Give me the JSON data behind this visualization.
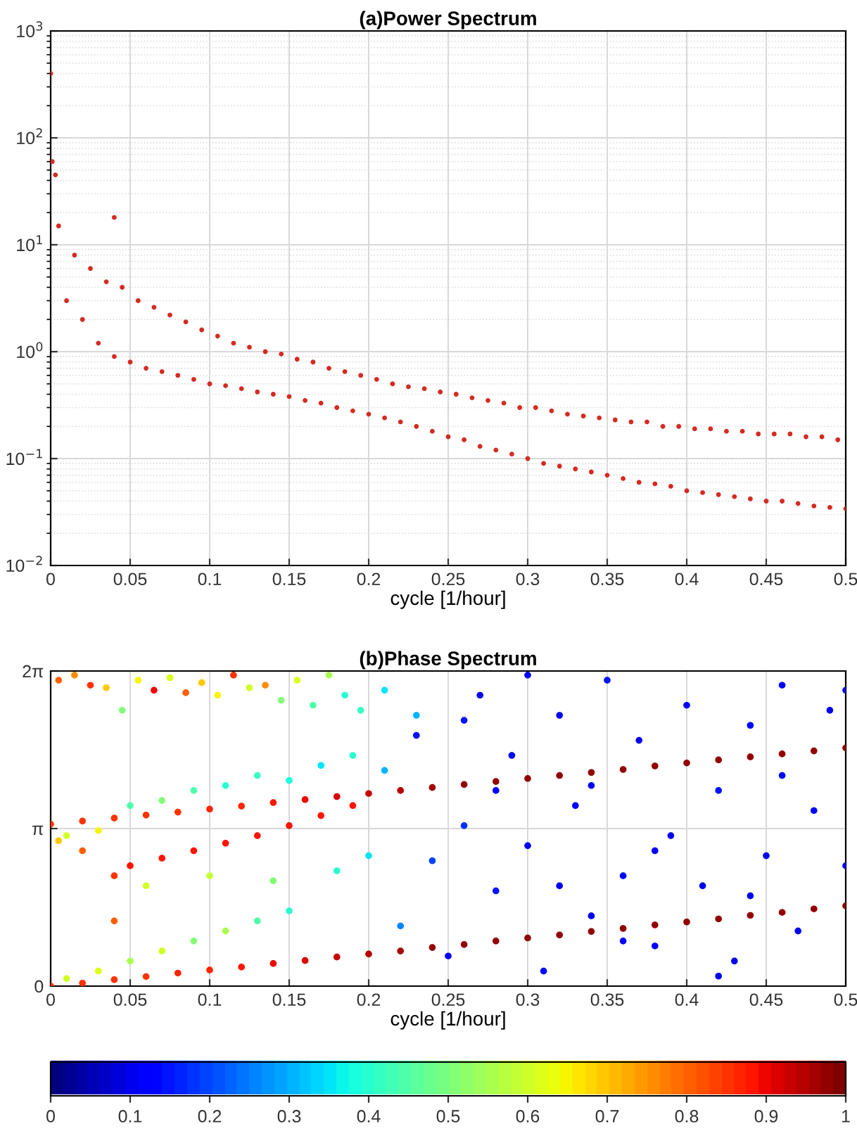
{
  "chart_data": [
    {
      "type": "scatter",
      "title": "(a)Power Spectrum",
      "xlabel": "cycle [1/hour]",
      "log": "y",
      "grid": true,
      "marker": "circle",
      "xlim": [
        0,
        0.5
      ],
      "xticks": [
        0,
        0.05,
        0.1,
        0.15,
        0.2,
        0.25,
        0.3,
        0.35,
        0.4,
        0.45,
        0.5
      ],
      "ylim": [
        0.01,
        1000
      ],
      "yticks": [
        {
          "value": 0.01,
          "label": "10$^{−2}$"
        },
        {
          "value": 0.1,
          "label": "10$^{−1}$"
        },
        {
          "value": 1,
          "label": "10$^{0}$"
        },
        {
          "value": 10,
          "label": "10$^{1}$"
        },
        {
          "value": 100,
          "label": "10$^{2}$"
        },
        {
          "value": 1000,
          "label": "10$^{3}$"
        }
      ],
      "series": [
        {
          "color": "#d62a20",
          "x": [
            0,
            0.001,
            0.003,
            0.04,
            0.005,
            0.015,
            0.025,
            0.035,
            0.045,
            0.055,
            0.065,
            0.075,
            0.085,
            0.095,
            0.105,
            0.115,
            0.125,
            0.135,
            0.145,
            0.155,
            0.165,
            0.175,
            0.185,
            0.195,
            0.205,
            0.215,
            0.225,
            0.235,
            0.245,
            0.255,
            0.265,
            0.275,
            0.285,
            0.295,
            0.305,
            0.315,
            0.325,
            0.335,
            0.345,
            0.355,
            0.365,
            0.375,
            0.385,
            0.395,
            0.405,
            0.415,
            0.425,
            0.435,
            0.445,
            0.455,
            0.465,
            0.475,
            0.485,
            0.495
          ],
          "values": [
            400,
            60,
            45,
            18,
            15,
            8,
            6,
            4.5,
            4,
            3,
            2.6,
            2.2,
            1.9,
            1.6,
            1.4,
            1.2,
            1.1,
            1.0,
            0.95,
            0.85,
            0.8,
            0.7,
            0.65,
            0.6,
            0.55,
            0.5,
            0.47,
            0.45,
            0.42,
            0.4,
            0.37,
            0.35,
            0.33,
            0.3,
            0.3,
            0.28,
            0.26,
            0.25,
            0.24,
            0.23,
            0.22,
            0.22,
            0.2,
            0.2,
            0.19,
            0.19,
            0.18,
            0.18,
            0.17,
            0.17,
            0.17,
            0.16,
            0.16,
            0.15
          ]
        },
        {
          "color": "#d62a20",
          "x": [
            0.01,
            0.02,
            0.03,
            0.04,
            0.05,
            0.06,
            0.07,
            0.08,
            0.09,
            0.1,
            0.11,
            0.12,
            0.13,
            0.14,
            0.15,
            0.16,
            0.17,
            0.18,
            0.19,
            0.2,
            0.21,
            0.22,
            0.23,
            0.24,
            0.25,
            0.26,
            0.27,
            0.28,
            0.29,
            0.3,
            0.31,
            0.32,
            0.33,
            0.34,
            0.35,
            0.36,
            0.37,
            0.38,
            0.39,
            0.4,
            0.41,
            0.42,
            0.43,
            0.44,
            0.45,
            0.46,
            0.47,
            0.48,
            0.49,
            0.5
          ],
          "values": [
            3,
            2,
            1.2,
            0.9,
            0.8,
            0.7,
            0.65,
            0.6,
            0.55,
            0.5,
            0.48,
            0.45,
            0.42,
            0.4,
            0.38,
            0.35,
            0.33,
            0.3,
            0.28,
            0.26,
            0.24,
            0.22,
            0.2,
            0.18,
            0.16,
            0.15,
            0.13,
            0.12,
            0.11,
            0.1,
            0.09,
            0.085,
            0.08,
            0.075,
            0.07,
            0.065,
            0.06,
            0.058,
            0.055,
            0.05,
            0.048,
            0.046,
            0.044,
            0.042,
            0.04,
            0.04,
            0.038,
            0.036,
            0.035,
            0.034
          ]
        }
      ]
    },
    {
      "type": "scatter",
      "title": "(b)Phase Spectrum",
      "xlabel": "cycle [1/hour]",
      "grid": true,
      "marker": "circle",
      "xlim": [
        0,
        0.5
      ],
      "xticks": [
        0,
        0.05,
        0.1,
        0.15,
        0.2,
        0.25,
        0.3,
        0.35,
        0.4,
        0.45,
        0.5
      ],
      "ylim": [
        0,
        6.2832
      ],
      "yticks": [
        0,
        {
          "value": 3.1416,
          "label": "π"
        },
        {
          "value": 6.2832,
          "label": "2π"
        }
      ],
      "clim": [
        0,
        1
      ],
      "cticks": [
        0,
        0.1,
        0.2,
        0.3,
        0.4,
        0.5,
        0.6,
        0.7,
        0.8,
        0.9,
        1
      ],
      "x": [
        0.22,
        0.23,
        0.24,
        0.25,
        0.26,
        0.27,
        0.28,
        0.29,
        0.3,
        0.31,
        0.32,
        0.33,
        0.34,
        0.35,
        0.36,
        0.37,
        0.38,
        0.39,
        0.4,
        0.41,
        0.42,
        0.43,
        0.44,
        0.45,
        0.46,
        0.47,
        0.48,
        0.49,
        0.5,
        0.26,
        0.3,
        0.34,
        0.38,
        0.42,
        0.46,
        0.5,
        0.44,
        0.36,
        0.28,
        0.32,
        0.005,
        0.015,
        0.025,
        0.035,
        0.045,
        0.055,
        0.065,
        0.075,
        0.085,
        0.095,
        0.105,
        0.115,
        0.125,
        0.135,
        0.145,
        0.155,
        0.165,
        0.175,
        0.185,
        0.195,
        0.21,
        0.23,
        0.05,
        0.07,
        0.09,
        0.11,
        0.13,
        0.15,
        0.17,
        0.19,
        0.21,
        0.01,
        0.03,
        0.05,
        0.07,
        0.09,
        0.11,
        0.13,
        0.15,
        0.06,
        0.1,
        0.14,
        0.18,
        0.2,
        0.005,
        0.01,
        0.02,
        0.03,
        0.04,
        0.04,
        0.05,
        0.07,
        0.09,
        0.11,
        0.13,
        0.15,
        0.17,
        0.19,
        0,
        0.02,
        0.04,
        0.06,
        0.08,
        0.1,
        0.12,
        0.14,
        0.16,
        0.18,
        0.2,
        0.22,
        0.24,
        0.26,
        0.28,
        0.3,
        0.32,
        0.34,
        0.36,
        0.38,
        0.4,
        0.42,
        0.44,
        0.46,
        0.48,
        0.5,
        0,
        0.02,
        0.04,
        0.06,
        0.08,
        0.1,
        0.12,
        0.14,
        0.16,
        0.18,
        0.2,
        0.22,
        0.24,
        0.26,
        0.28,
        0.3,
        0.32,
        0.34,
        0.36,
        0.38,
        0.4,
        0.42,
        0.44,
        0.46,
        0.48,
        0.5
      ],
      "values": [
        1.2,
        5.0,
        2.5,
        0.6,
        3.2,
        5.8,
        1.9,
        4.6,
        2.8,
        0.3,
        5.4,
        3.6,
        1.4,
        6.1,
        2.2,
        4.9,
        0.8,
        3.0,
        5.6,
        2.0,
        3.9,
        0.5,
        5.2,
        2.6,
        6.0,
        1.1,
        3.5,
        5.5,
        2.4,
        5.3,
        6.2,
        4.0,
        2.7,
        0.2,
        4.2,
        5.9,
        1.8,
        0.9,
        3.9,
        2.0,
        6.1,
        6.2,
        6.0,
        5.95,
        5.5,
        6.1,
        5.9,
        6.15,
        5.85,
        6.05,
        5.8,
        6.2,
        5.95,
        6.0,
        5.7,
        6.1,
        5.6,
        6.2,
        5.8,
        5.5,
        5.9,
        5.4,
        3.6,
        3.7,
        3.9,
        4.0,
        4.2,
        4.1,
        4.4,
        4.6,
        4.3,
        0.15,
        0.3,
        0.5,
        0.7,
        0.9,
        1.1,
        1.3,
        1.5,
        2.0,
        2.2,
        2.1,
        2.3,
        2.6,
        2.9,
        3.0,
        2.7,
        3.1,
        2.2,
        1.3,
        2.4,
        2.55,
        2.7,
        2.85,
        3.0,
        3.2,
        3.4,
        3.6,
        3.23,
        3.29,
        3.35,
        3.41,
        3.47,
        3.53,
        3.59,
        3.66,
        3.72,
        3.78,
        3.84,
        3.9,
        3.96,
        4.02,
        4.08,
        4.14,
        4.2,
        4.26,
        4.32,
        4.39,
        4.45,
        4.51,
        4.57,
        4.63,
        4.69,
        4.75,
        0.0,
        0.06,
        0.13,
        0.19,
        0.26,
        0.32,
        0.38,
        0.45,
        0.51,
        0.58,
        0.64,
        0.7,
        0.77,
        0.83,
        0.9,
        0.96,
        1.02,
        1.09,
        1.15,
        1.22,
        1.28,
        1.34,
        1.41,
        1.47,
        1.54,
        1.6
      ],
      "cvalues": [
        0.25,
        0.15,
        0.2,
        0.12,
        0.18,
        0.1,
        0.15,
        0.12,
        0.1,
        0.14,
        0.1,
        0.13,
        0.1,
        0.15,
        0.12,
        0.1,
        0.13,
        0.1,
        0.12,
        0.1,
        0.15,
        0.1,
        0.12,
        0.1,
        0.14,
        0.1,
        0.12,
        0.1,
        0.13,
        0.15,
        0.12,
        0.1,
        0.12,
        0.1,
        0.1,
        0.12,
        0.1,
        0.12,
        0.14,
        0.1,
        0.8,
        0.75,
        0.85,
        0.7,
        0.5,
        0.65,
        0.9,
        0.62,
        0.8,
        0.7,
        0.65,
        0.85,
        0.6,
        0.75,
        0.5,
        0.62,
        0.45,
        0.55,
        0.4,
        0.42,
        0.35,
        0.3,
        0.45,
        0.5,
        0.45,
        0.4,
        0.42,
        0.38,
        0.35,
        0.4,
        0.3,
        0.6,
        0.62,
        0.55,
        0.6,
        0.5,
        0.55,
        0.45,
        0.4,
        0.6,
        0.58,
        0.5,
        0.4,
        0.35,
        0.7,
        0.6,
        0.8,
        0.65,
        0.85,
        0.8,
        0.88,
        0.88,
        0.88,
        0.88,
        0.88,
        0.88,
        0.88,
        0.88,
        0.85,
        0.85,
        0.85,
        0.85,
        0.85,
        0.86,
        0.87,
        0.88,
        0.9,
        0.92,
        0.93,
        0.95,
        0.96,
        0.97,
        0.97,
        0.97,
        0.97,
        0.97,
        0.97,
        0.97,
        0.97,
        0.97,
        0.97,
        0.97,
        0.97,
        0.97,
        0.85,
        0.85,
        0.85,
        0.85,
        0.86,
        0.87,
        0.88,
        0.9,
        0.92,
        0.93,
        0.95,
        0.96,
        0.97,
        0.97,
        0.97,
        0.97,
        0.97,
        0.97,
        0.97,
        0.97,
        0.97,
        0.97,
        0.97,
        0.97,
        0.97,
        0.97
      ]
    }
  ]
}
